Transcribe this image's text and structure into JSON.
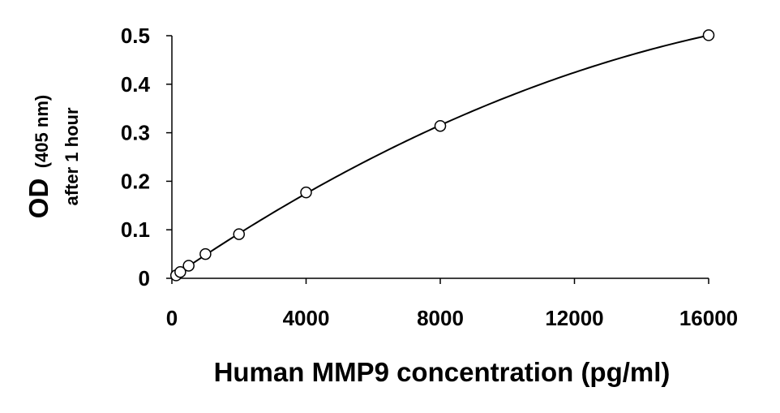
{
  "chart_data": {
    "type": "scatter",
    "title": "",
    "xlabel": "Human MMP9 concentration (pg/ml)",
    "ylabel": {
      "main": "OD",
      "unit": "(405 nm)",
      "line2": "after 1 hour"
    },
    "xlim": [
      0,
      16000
    ],
    "ylim": [
      0,
      0.5
    ],
    "xticks": [
      "0",
      "4000",
      "8000",
      "12000",
      "16000"
    ],
    "yticks": [
      "0",
      "0.1",
      "0.2",
      "0.3",
      "0.4",
      "0.5"
    ],
    "xtick_values": [
      0,
      4000,
      8000,
      12000,
      16000
    ],
    "ytick_values": [
      0,
      0.1,
      0.2,
      0.3,
      0.4,
      0.5
    ],
    "grid": false,
    "legend": "none",
    "series": [
      {
        "marker": "open-circle",
        "fit_line": "smooth-curve",
        "x": [
          125,
          250,
          500,
          1000,
          2000,
          4000,
          8000,
          16000
        ],
        "y": [
          0.006,
          0.013,
          0.026,
          0.05,
          0.091,
          0.177,
          0.314,
          0.501
        ]
      }
    ],
    "colors": {
      "marks": "#000000",
      "background": "#ffffff"
    }
  }
}
